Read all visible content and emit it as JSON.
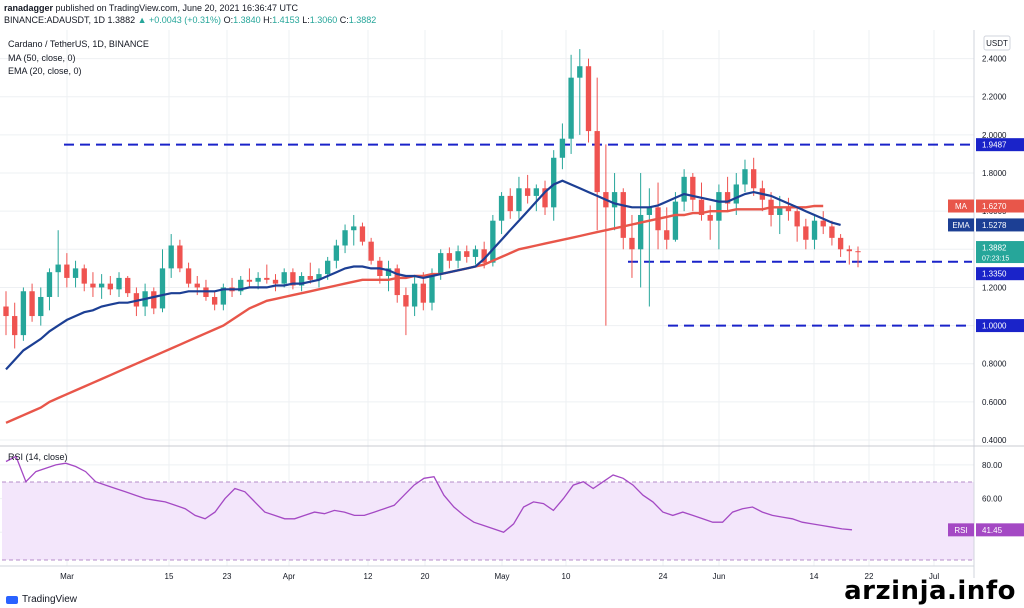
{
  "header": {
    "publisher": "ranadagger",
    "published_text": "published on TradingView.com, June 20, 2021 16:36:47 UTC",
    "ticker": "BINANCE:ADAUSDT, 1D",
    "last": "1.3882",
    "change": "▲ +0.0043 (+0.31%)",
    "ohlc": {
      "o_label": "O:",
      "o": "1.3840",
      "h_label": "H:",
      "h": "1.4153",
      "l_label": "L:",
      "l": "1.3060",
      "c_label": "C:",
      "c": "1.3882"
    }
  },
  "legend": {
    "symbol": "Cardano / TetherUS, 1D, BINANCE",
    "ma": "MA (50, close, 0)",
    "ema": "EMA (20, close, 0)",
    "rsi": "RSI (14, close)"
  },
  "currency": "USDT",
  "colors": {
    "up": "#26a69a",
    "down": "#ef5350",
    "ma": "#e8564a",
    "ema": "#1c3f94",
    "level": "#1a23c9",
    "rsi": "#a449c4",
    "rsi_band": "#f3e6fb"
  },
  "tags": {
    "ma": {
      "label": "MA",
      "value": "1.6270"
    },
    "ema": {
      "label": "EMA",
      "value": "1.5278"
    },
    "price": {
      "value": "1.3882",
      "sub": "07:23:15"
    },
    "lv1": "1.9487",
    "lv2": "1.3350",
    "lv3": "1.0000",
    "rsi": {
      "label": "RSI",
      "value": "41.45"
    }
  },
  "footer": {
    "brand": "TradingView",
    "watermark": "arzinja.info"
  },
  "chart_data": {
    "type": "candlestick",
    "price_axis": {
      "ticks": [
        "2.4000",
        "2.2000",
        "2.0000",
        "1.8000",
        "1.6000",
        "1.4000",
        "1.2000",
        "1.0000",
        "0.8000",
        "0.6000",
        "0.4000"
      ],
      "range": [
        0.4,
        2.55
      ]
    },
    "x_axis": {
      "ticks": [
        "Mar",
        "15",
        "23",
        "Apr",
        "12",
        "20",
        "May",
        "10",
        "24",
        "Jun",
        "14",
        "22",
        "Jul"
      ]
    },
    "levels": [
      1.9487,
      1.335,
      1.0
    ],
    "candles": [
      [
        1.1,
        1.18,
        0.95,
        1.05
      ],
      [
        1.05,
        1.12,
        0.88,
        0.95
      ],
      [
        0.95,
        1.2,
        0.92,
        1.18
      ],
      [
        1.18,
        1.22,
        1.02,
        1.05
      ],
      [
        1.05,
        1.2,
        1.0,
        1.15
      ],
      [
        1.15,
        1.3,
        1.08,
        1.28
      ],
      [
        1.28,
        1.5,
        1.15,
        1.32
      ],
      [
        1.32,
        1.38,
        1.2,
        1.25
      ],
      [
        1.25,
        1.34,
        1.2,
        1.3
      ],
      [
        1.3,
        1.32,
        1.18,
        1.22
      ],
      [
        1.22,
        1.28,
        1.15,
        1.2
      ],
      [
        1.2,
        1.27,
        1.14,
        1.22
      ],
      [
        1.22,
        1.26,
        1.16,
        1.19
      ],
      [
        1.19,
        1.28,
        1.15,
        1.25
      ],
      [
        1.25,
        1.26,
        1.15,
        1.17
      ],
      [
        1.17,
        1.2,
        1.05,
        1.1
      ],
      [
        1.1,
        1.22,
        1.05,
        1.18
      ],
      [
        1.18,
        1.2,
        1.06,
        1.09
      ],
      [
        1.09,
        1.4,
        1.07,
        1.3
      ],
      [
        1.3,
        1.48,
        1.25,
        1.42
      ],
      [
        1.42,
        1.45,
        1.28,
        1.3
      ],
      [
        1.3,
        1.33,
        1.2,
        1.22
      ],
      [
        1.22,
        1.26,
        1.16,
        1.2
      ],
      [
        1.2,
        1.24,
        1.13,
        1.15
      ],
      [
        1.15,
        1.18,
        1.08,
        1.11
      ],
      [
        1.11,
        1.22,
        1.08,
        1.2
      ],
      [
        1.2,
        1.25,
        1.15,
        1.18
      ],
      [
        1.18,
        1.26,
        1.16,
        1.24
      ],
      [
        1.24,
        1.3,
        1.2,
        1.23
      ],
      [
        1.23,
        1.28,
        1.19,
        1.25
      ],
      [
        1.25,
        1.32,
        1.22,
        1.24
      ],
      [
        1.24,
        1.27,
        1.18,
        1.22
      ],
      [
        1.22,
        1.3,
        1.2,
        1.28
      ],
      [
        1.28,
        1.3,
        1.19,
        1.21
      ],
      [
        1.21,
        1.28,
        1.18,
        1.26
      ],
      [
        1.26,
        1.33,
        1.22,
        1.24
      ],
      [
        1.24,
        1.3,
        1.2,
        1.27
      ],
      [
        1.27,
        1.36,
        1.24,
        1.34
      ],
      [
        1.34,
        1.45,
        1.3,
        1.42
      ],
      [
        1.42,
        1.53,
        1.38,
        1.5
      ],
      [
        1.5,
        1.58,
        1.42,
        1.52
      ],
      [
        1.52,
        1.54,
        1.42,
        1.44
      ],
      [
        1.44,
        1.46,
        1.32,
        1.34
      ],
      [
        1.34,
        1.36,
        1.22,
        1.26
      ],
      [
        1.26,
        1.34,
        1.18,
        1.3
      ],
      [
        1.3,
        1.32,
        1.12,
        1.16
      ],
      [
        1.16,
        1.2,
        0.95,
        1.1
      ],
      [
        1.1,
        1.26,
        1.05,
        1.22
      ],
      [
        1.22,
        1.28,
        1.08,
        1.12
      ],
      [
        1.12,
        1.3,
        1.08,
        1.27
      ],
      [
        1.27,
        1.4,
        1.24,
        1.38
      ],
      [
        1.38,
        1.41,
        1.3,
        1.34
      ],
      [
        1.34,
        1.42,
        1.3,
        1.39
      ],
      [
        1.39,
        1.42,
        1.33,
        1.36
      ],
      [
        1.36,
        1.42,
        1.32,
        1.4
      ],
      [
        1.4,
        1.44,
        1.3,
        1.33
      ],
      [
        1.33,
        1.58,
        1.31,
        1.55
      ],
      [
        1.55,
        1.7,
        1.48,
        1.68
      ],
      [
        1.68,
        1.72,
        1.56,
        1.6
      ],
      [
        1.6,
        1.78,
        1.56,
        1.72
      ],
      [
        1.72,
        1.79,
        1.64,
        1.68
      ],
      [
        1.68,
        1.74,
        1.6,
        1.72
      ],
      [
        1.72,
        1.76,
        1.58,
        1.62
      ],
      [
        1.62,
        1.92,
        1.55,
        1.88
      ],
      [
        1.88,
        2.06,
        1.82,
        1.98
      ],
      [
        1.98,
        2.42,
        1.9,
        2.3
      ],
      [
        2.3,
        2.45,
        2.0,
        2.36
      ],
      [
        2.36,
        2.4,
        1.96,
        2.02
      ],
      [
        2.02,
        2.3,
        1.5,
        1.7
      ],
      [
        1.7,
        1.95,
        1.0,
        1.62
      ],
      [
        1.62,
        1.8,
        1.5,
        1.7
      ],
      [
        1.7,
        1.72,
        1.4,
        1.46
      ],
      [
        1.46,
        1.58,
        1.25,
        1.4
      ],
      [
        1.4,
        1.8,
        1.2,
        1.58
      ],
      [
        1.58,
        1.72,
        1.1,
        1.62
      ],
      [
        1.62,
        1.75,
        1.4,
        1.5
      ],
      [
        1.5,
        1.62,
        1.4,
        1.45
      ],
      [
        1.45,
        1.7,
        1.44,
        1.65
      ],
      [
        1.65,
        1.82,
        1.6,
        1.78
      ],
      [
        1.78,
        1.8,
        1.6,
        1.66
      ],
      [
        1.66,
        1.75,
        1.55,
        1.58
      ],
      [
        1.58,
        1.63,
        1.45,
        1.55
      ],
      [
        1.55,
        1.74,
        1.4,
        1.7
      ],
      [
        1.7,
        1.78,
        1.6,
        1.64
      ],
      [
        1.64,
        1.8,
        1.58,
        1.74
      ],
      [
        1.74,
        1.87,
        1.7,
        1.82
      ],
      [
        1.82,
        1.88,
        1.68,
        1.72
      ],
      [
        1.72,
        1.76,
        1.6,
        1.66
      ],
      [
        1.66,
        1.7,
        1.52,
        1.58
      ],
      [
        1.58,
        1.68,
        1.48,
        1.62
      ],
      [
        1.62,
        1.67,
        1.55,
        1.6
      ],
      [
        1.6,
        1.62,
        1.44,
        1.52
      ],
      [
        1.52,
        1.56,
        1.4,
        1.45
      ],
      [
        1.45,
        1.58,
        1.4,
        1.55
      ],
      [
        1.55,
        1.6,
        1.48,
        1.52
      ],
      [
        1.52,
        1.55,
        1.42,
        1.46
      ],
      [
        1.46,
        1.48,
        1.36,
        1.4
      ],
      [
        1.4,
        1.42,
        1.32,
        1.39
      ],
      [
        1.39,
        1.415,
        1.306,
        1.3882
      ]
    ],
    "ma50": [
      0.49,
      0.51,
      0.53,
      0.55,
      0.57,
      0.6,
      0.62,
      0.64,
      0.66,
      0.68,
      0.7,
      0.72,
      0.74,
      0.76,
      0.78,
      0.8,
      0.82,
      0.84,
      0.86,
      0.88,
      0.9,
      0.92,
      0.94,
      0.96,
      0.98,
      1.0,
      1.03,
      1.06,
      1.09,
      1.11,
      1.13,
      1.14,
      1.15,
      1.16,
      1.17,
      1.18,
      1.19,
      1.2,
      1.21,
      1.22,
      1.23,
      1.24,
      1.24,
      1.24,
      1.24,
      1.25,
      1.25,
      1.26,
      1.26,
      1.27,
      1.27,
      1.28,
      1.29,
      1.3,
      1.31,
      1.32,
      1.34,
      1.36,
      1.38,
      1.4,
      1.41,
      1.42,
      1.43,
      1.44,
      1.45,
      1.46,
      1.47,
      1.48,
      1.49,
      1.5,
      1.51,
      1.52,
      1.53,
      1.54,
      1.55,
      1.56,
      1.57,
      1.58,
      1.58,
      1.59,
      1.59,
      1.6,
      1.6,
      1.6,
      1.61,
      1.61,
      1.61,
      1.61,
      1.62,
      1.62,
      1.62,
      1.62,
      1.62,
      1.627,
      1.627
    ],
    "ema20": [
      0.77,
      0.82,
      0.87,
      0.9,
      0.93,
      0.97,
      1.0,
      1.03,
      1.05,
      1.07,
      1.08,
      1.1,
      1.11,
      1.12,
      1.12,
      1.13,
      1.14,
      1.15,
      1.16,
      1.17,
      1.17,
      1.18,
      1.18,
      1.18,
      1.18,
      1.19,
      1.19,
      1.19,
      1.2,
      1.2,
      1.2,
      1.21,
      1.21,
      1.22,
      1.22,
      1.23,
      1.24,
      1.26,
      1.28,
      1.3,
      1.31,
      1.31,
      1.3,
      1.3,
      1.29,
      1.27,
      1.26,
      1.26,
      1.25,
      1.26,
      1.27,
      1.28,
      1.29,
      1.3,
      1.31,
      1.35,
      1.4,
      1.45,
      1.5,
      1.55,
      1.6,
      1.65,
      1.7,
      1.74,
      1.76,
      1.74,
      1.72,
      1.7,
      1.68,
      1.66,
      1.64,
      1.63,
      1.62,
      1.62,
      1.62,
      1.63,
      1.65,
      1.67,
      1.69,
      1.68,
      1.67,
      1.66,
      1.65,
      1.65,
      1.67,
      1.69,
      1.7,
      1.69,
      1.68,
      1.66,
      1.64,
      1.62,
      1.6,
      1.58,
      1.56,
      1.54,
      1.5278
    ],
    "rsi": [
      82,
      85,
      70,
      76,
      78,
      80,
      81,
      79,
      76,
      70,
      68,
      66,
      64,
      62,
      60,
      59,
      58,
      56,
      54,
      50,
      48,
      52,
      60,
      66,
      64,
      58,
      52,
      50,
      48,
      48,
      50,
      52,
      51,
      53,
      52,
      50,
      50,
      52,
      54,
      56,
      62,
      68,
      72,
      73,
      62,
      55,
      50,
      46,
      44,
      42,
      40,
      45,
      55,
      58,
      57,
      53,
      60,
      68,
      70,
      66,
      70,
      74,
      72,
      68,
      62,
      58,
      52,
      50,
      52,
      50,
      48,
      46,
      46,
      52,
      54,
      55,
      52,
      50,
      49,
      48,
      46,
      45,
      44,
      43,
      42,
      41.45
    ]
  }
}
